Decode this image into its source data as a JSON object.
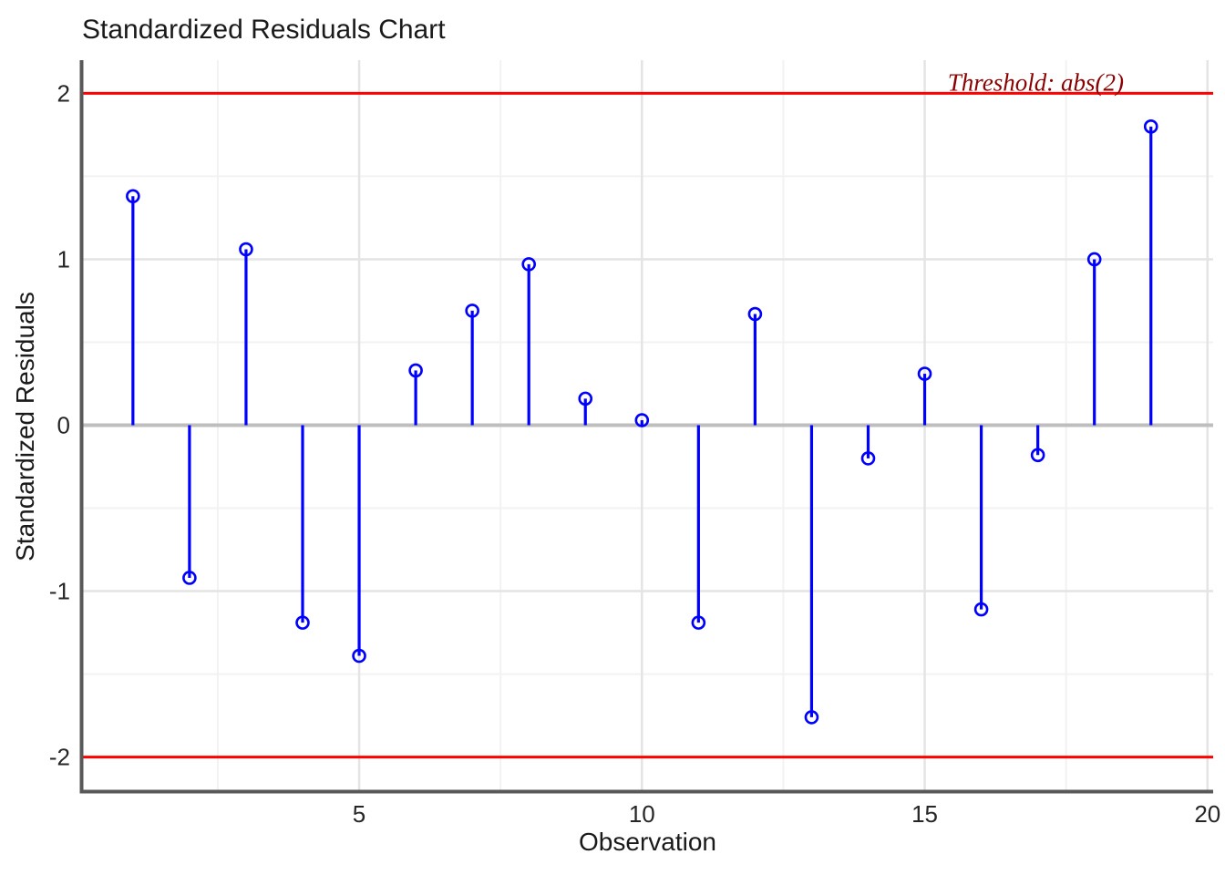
{
  "title": "Standardized Residuals Chart",
  "chart_data": {
    "type": "scatter",
    "variant": "stem-lollipop",
    "title": "Standardized Residuals Chart",
    "xlabel": "Observation",
    "ylabel": "Standardized Residuals",
    "x": [
      1,
      2,
      3,
      4,
      5,
      6,
      7,
      8,
      9,
      10,
      11,
      12,
      13,
      14,
      15,
      16,
      17,
      18,
      19
    ],
    "y": [
      1.38,
      -0.92,
      1.06,
      -1.19,
      -1.39,
      0.33,
      0.69,
      0.97,
      0.16,
      0.03,
      -1.19,
      0.67,
      -1.76,
      -0.2,
      0.31,
      -1.11,
      -0.18,
      1.0,
      1.8
    ],
    "threshold": {
      "value": 2,
      "label": "Threshold: abs(2)",
      "lines_at": [
        2,
        -2
      ]
    },
    "zero_line_at": 0,
    "xlim": [
      0.1,
      20.1
    ],
    "ylim": [
      -2.2,
      2.2
    ],
    "x_ticks": [
      5,
      10,
      15,
      20
    ],
    "x_tick_labels": [
      "5",
      "10",
      "15",
      "20"
    ],
    "y_ticks": [
      2,
      1,
      0,
      -1,
      -2
    ],
    "y_tick_labels": [
      "2",
      "1",
      "0",
      "-1",
      "-2"
    ],
    "x_minor": [
      2.5,
      7.5,
      12.5,
      17.5
    ],
    "y_minor": [
      1.5,
      0.5,
      -0.5,
      -1.5
    ],
    "grid": true,
    "legend": "none",
    "colors": {
      "stem": "#0000FF",
      "point_outline": "#0000FF",
      "threshold_line": "#FF0000",
      "threshold_text": "#8B0000",
      "zero_line": "#BEBEBE",
      "axis_line": "#595959",
      "grid_major": "#E4E4E4",
      "grid_minor": "#F2F2F2",
      "tick_text": "#262626"
    }
  }
}
